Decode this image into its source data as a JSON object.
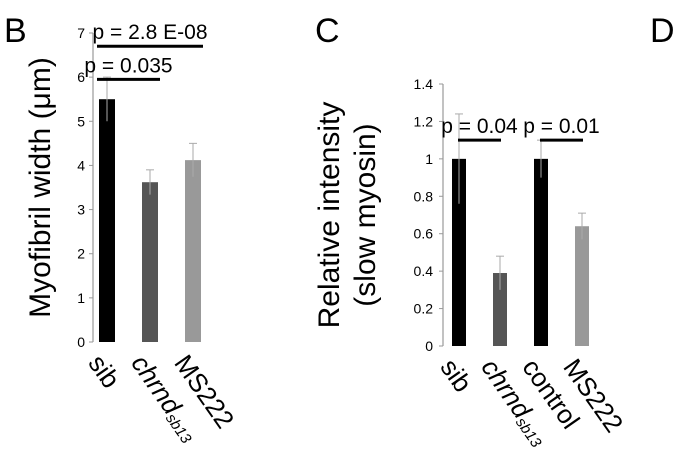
{
  "panel_letters": [
    "B",
    "C",
    "D"
  ],
  "chart_data": [
    {
      "type": "bar",
      "panel": "B",
      "ylabel": "Myofibril width (µm)",
      "ylim": [
        0,
        7
      ],
      "yticks": [
        "0",
        "1",
        "2",
        "3",
        "4",
        "5",
        "6",
        "7"
      ],
      "categories": [
        {
          "label": "sib",
          "italic": false,
          "sub": ""
        },
        {
          "label": "chrnd",
          "italic": true,
          "sub": "sb13"
        },
        {
          "label": "MS222",
          "italic": false,
          "sub": ""
        }
      ],
      "values": [
        5.5,
        3.62,
        4.12
      ],
      "errors": [
        0.5,
        0.28,
        0.38
      ],
      "colors": [
        "#000000",
        "#555555",
        "#999999"
      ],
      "significance": [
        {
          "from": 0,
          "to": 1,
          "text": "p = 0.035",
          "level": 5.95
        },
        {
          "from": 0,
          "to": 2,
          "text": "p = 2.8 E-08",
          "level": 6.7
        }
      ]
    },
    {
      "type": "bar",
      "panel": "C",
      "ylabel_lines": [
        "Relative intensity",
        "(slow myosin)"
      ],
      "ylim": [
        0,
        1.4
      ],
      "yticks": [
        "0",
        "0.2",
        "0.4",
        "0.6",
        "0.8",
        "1",
        "1.2",
        "1.4"
      ],
      "categories": [
        {
          "label": "sib",
          "italic": false,
          "sub": ""
        },
        {
          "label": "chrnd",
          "italic": true,
          "sub": "sb13"
        },
        {
          "label": "control",
          "italic": false,
          "sub": ""
        },
        {
          "label": "MS222",
          "italic": false,
          "sub": ""
        }
      ],
      "values": [
        1.0,
        0.39,
        1.0,
        0.64
      ],
      "errors": [
        0.24,
        0.09,
        0.1,
        0.07
      ],
      "colors": [
        "#000000",
        "#555555",
        "#000000",
        "#999999"
      ],
      "significance": [
        {
          "from": 0,
          "to": 1,
          "text": "p = 0.04",
          "level": 1.1
        },
        {
          "from": 2,
          "to": 3,
          "text": "p = 0.01",
          "level": 1.1
        }
      ]
    }
  ]
}
